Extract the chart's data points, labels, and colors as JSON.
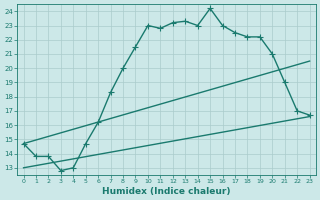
{
  "line1_x": [
    0,
    1,
    2,
    3,
    4,
    5,
    6,
    7,
    8,
    9,
    10,
    11,
    12,
    13,
    14,
    15,
    16,
    17,
    18,
    19,
    20,
    21,
    22,
    23
  ],
  "line1_y": [
    14.7,
    13.8,
    13.8,
    12.8,
    13.0,
    14.7,
    16.2,
    18.3,
    20.0,
    21.5,
    23.0,
    22.8,
    23.2,
    23.3,
    23.0,
    24.2,
    23.0,
    22.5,
    22.2,
    22.2,
    21.0,
    19.0,
    17.0,
    16.7
  ],
  "line2_x": [
    0,
    23
  ],
  "line2_y": [
    14.7,
    20.5
  ],
  "line3_x": [
    0,
    23
  ],
  "line3_y": [
    13.0,
    16.6
  ],
  "line_color": "#1a7a6e",
  "bg_color": "#cce8e8",
  "grid_color": "#aacccc",
  "xlabel": "Humidex (Indice chaleur)",
  "xlim": [
    -0.5,
    23.5
  ],
  "ylim": [
    12.5,
    24.5
  ],
  "yticks": [
    13,
    14,
    15,
    16,
    17,
    18,
    19,
    20,
    21,
    22,
    23,
    24
  ],
  "xtick_positions": [
    0,
    1,
    2,
    3,
    4,
    5,
    6,
    7,
    8,
    9,
    10,
    11,
    12,
    13,
    14,
    15,
    16,
    17,
    18,
    19,
    20,
    21,
    22,
    23
  ],
  "xtick_labels": [
    "0",
    "1",
    "2",
    "3",
    "4",
    "5",
    "6",
    "7",
    "8",
    "9",
    "10",
    "11",
    "12",
    "13",
    "14",
    "15",
    "16",
    "17",
    "18",
    "19",
    "20",
    "21",
    "22",
    "23"
  ],
  "marker": "+",
  "markersize": 4,
  "linewidth": 1.0
}
